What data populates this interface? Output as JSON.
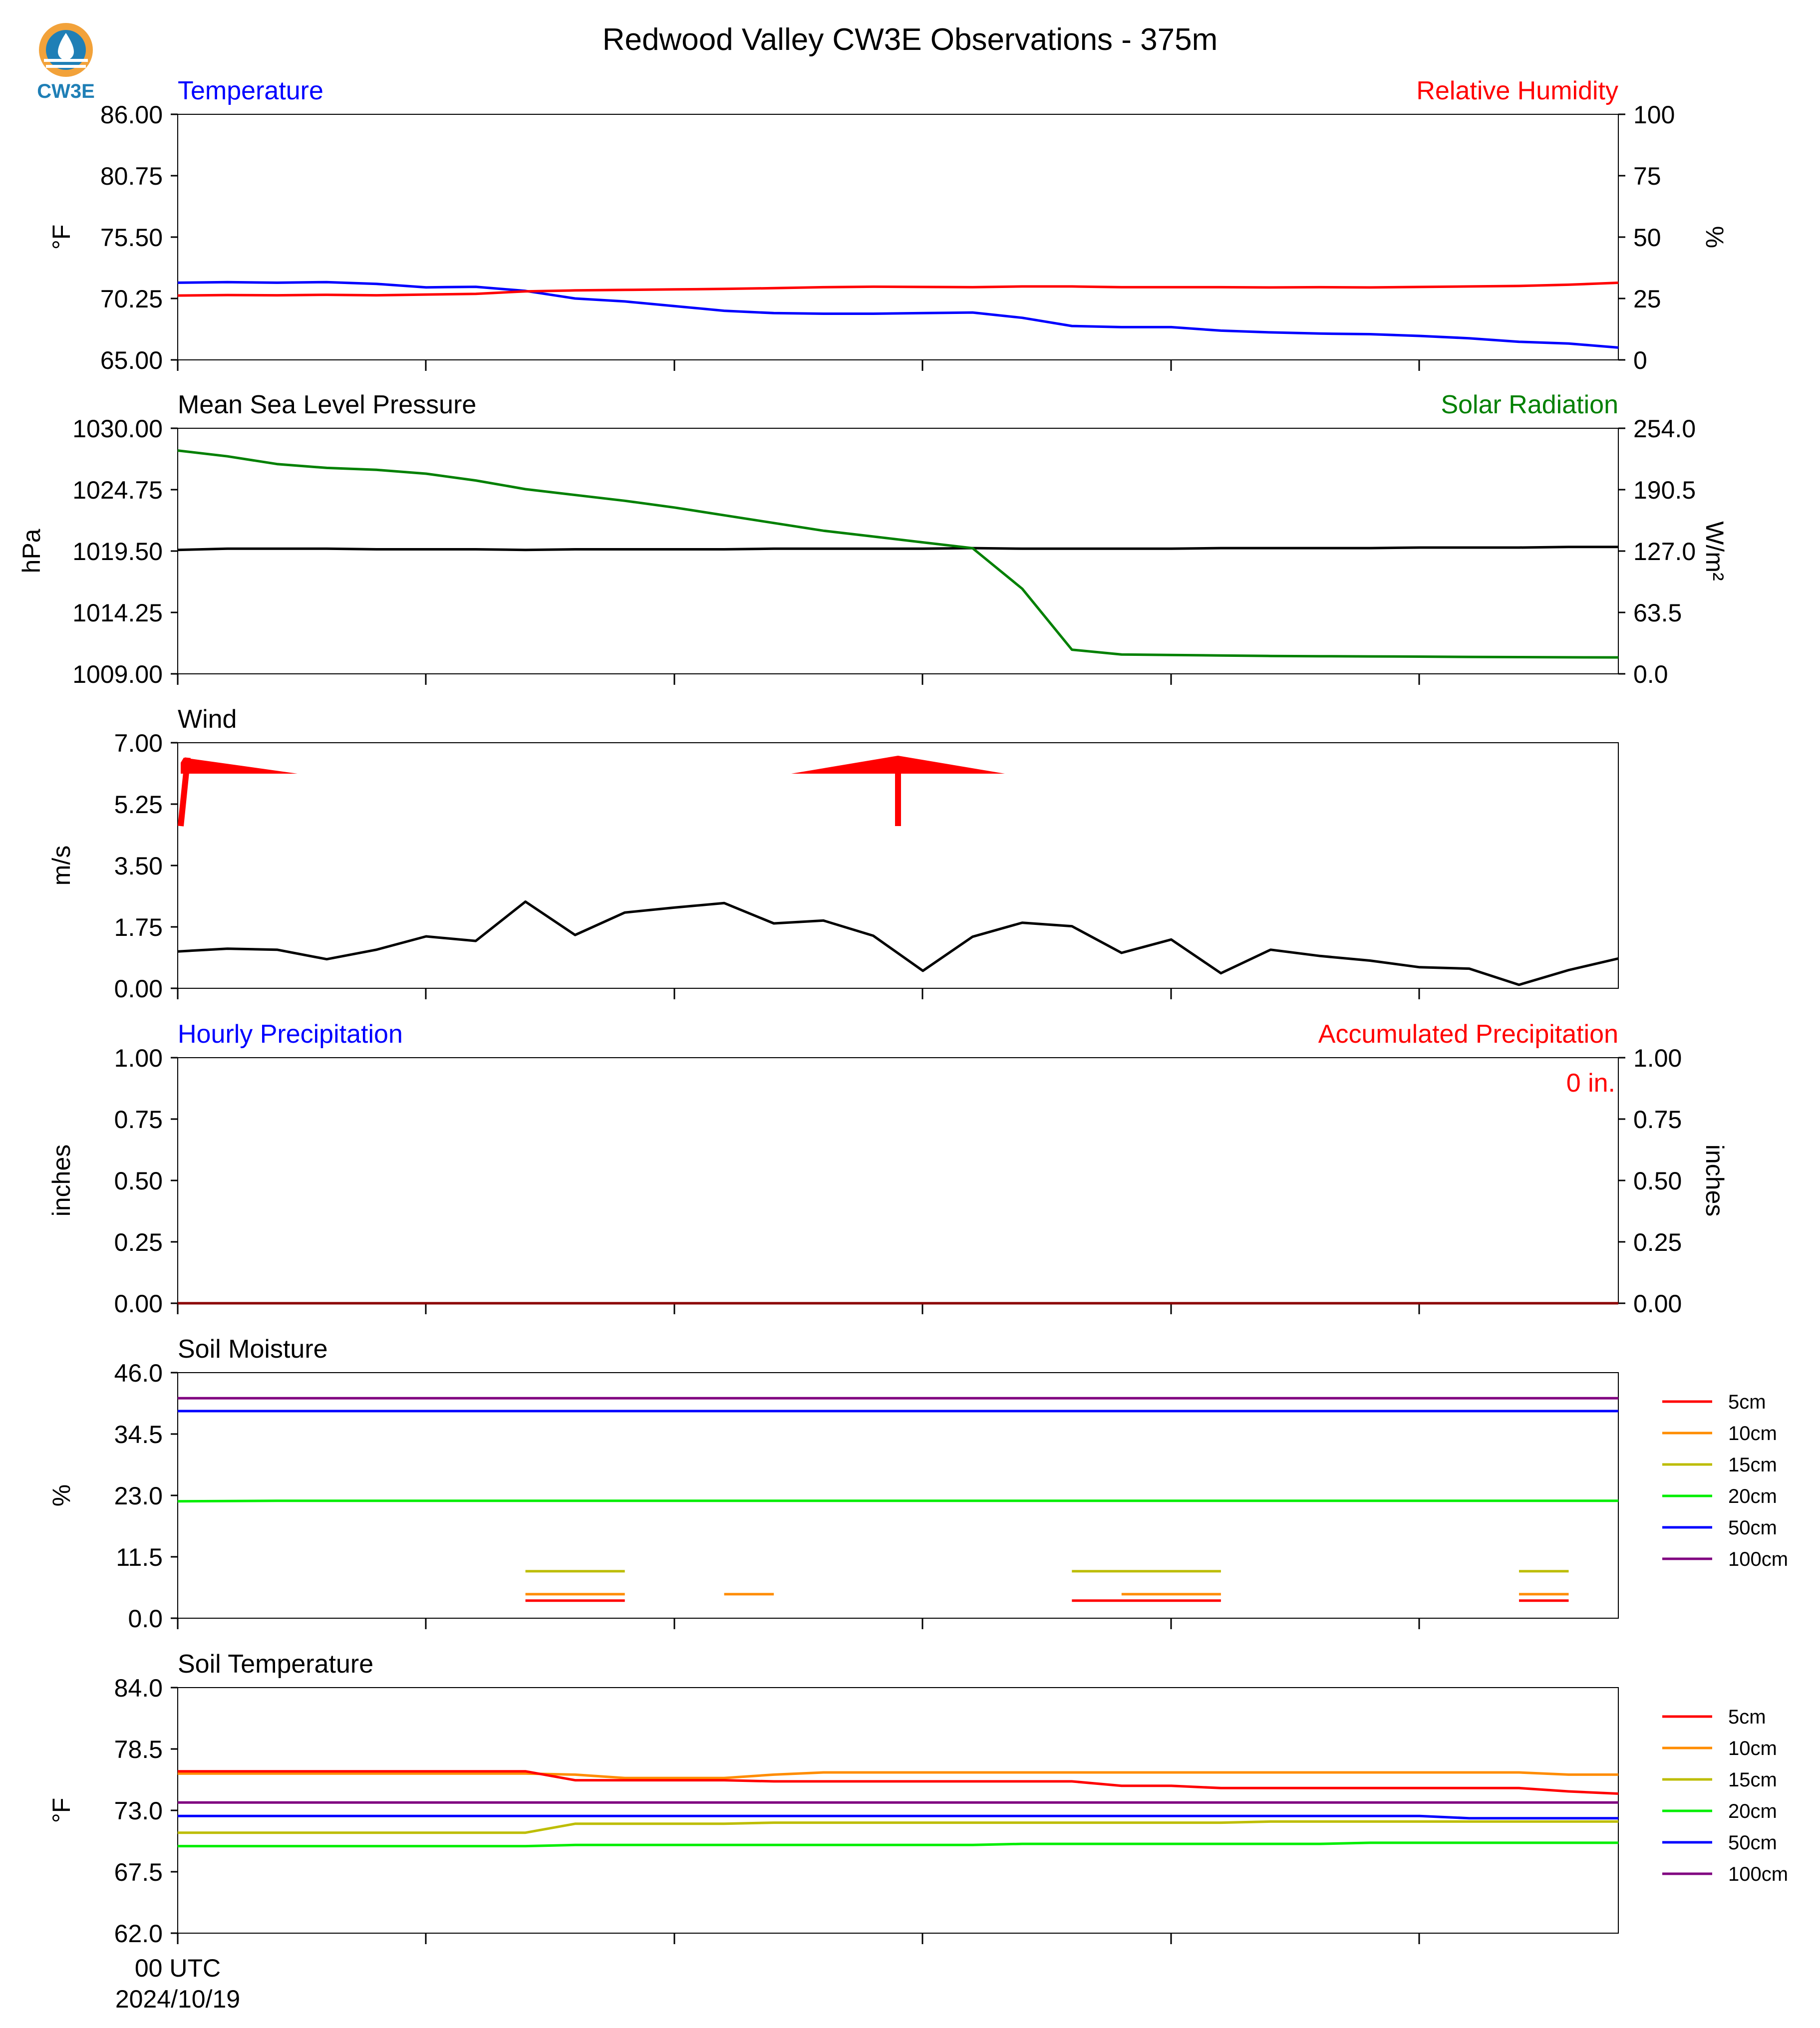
{
  "figure": {
    "title": "Redwood Valley CW3E Observations - 375m",
    "logo_text": "CW3E",
    "x_first_tick_line1": "00 UTC",
    "x_first_tick_line2": "2024/10/19"
  },
  "colors": {
    "logo_orange": "#f2a23a",
    "logo_blue": "#1f7fb6",
    "temperature": "#0000ff",
    "humidity": "#ff0000",
    "pressure": "#000000",
    "solar": "#008000",
    "wind": "#000000",
    "barb": "#ff0000",
    "precip_hourly": "#0000ff",
    "precip_accum": "#ff0000"
  },
  "chart_data": [
    {
      "id": "temp_rh",
      "type": "line",
      "left_title": "Temperature",
      "right_title": "Relative Humidity",
      "ylabel": "°F",
      "ylabel_right": "%",
      "ylim": [
        65.0,
        86.0
      ],
      "ylim_right": [
        0,
        100
      ],
      "yticks": [
        "86.00",
        "80.75",
        "75.50",
        "70.25",
        "65.00"
      ],
      "yticks_right": [
        "100",
        "75",
        "50",
        "25",
        "0"
      ],
      "x_hours": [
        0,
        1,
        2,
        3,
        4,
        5,
        6,
        7,
        8,
        9,
        10,
        11,
        12,
        13,
        14,
        15,
        16,
        17,
        18,
        19,
        20,
        21,
        22,
        23,
        24,
        25,
        26,
        27,
        28,
        29
      ],
      "series": [
        {
          "axis": "left",
          "color": "#0000ff",
          "values": [
            71.6,
            71.65,
            71.6,
            71.65,
            71.5,
            71.2,
            71.25,
            70.9,
            70.25,
            70.0,
            69.6,
            69.2,
            69.0,
            68.95,
            68.95,
            69.0,
            69.05,
            68.6,
            67.9,
            67.8,
            67.8,
            67.5,
            67.35,
            67.25,
            67.2,
            67.05,
            66.85,
            66.55,
            66.4,
            66.05
          ]
        },
        {
          "axis": "right",
          "color": "#ff0000",
          "values": [
            26.2,
            26.4,
            26.3,
            26.5,
            26.3,
            26.6,
            26.9,
            27.9,
            28.3,
            28.5,
            28.7,
            28.9,
            29.2,
            29.6,
            29.8,
            29.7,
            29.6,
            29.9,
            29.9,
            29.6,
            29.6,
            29.6,
            29.5,
            29.6,
            29.5,
            29.7,
            29.9,
            30.1,
            30.6,
            31.4
          ]
        }
      ]
    },
    {
      "id": "mslp_solar",
      "type": "line",
      "left_title": "Mean Sea Level Pressure",
      "right_title": "Solar Radiation",
      "ylabel": "hPa",
      "ylabel_right": "W/m²",
      "ylim": [
        1009.0,
        1030.0
      ],
      "ylim_right": [
        0.0,
        254.0
      ],
      "yticks": [
        "1030.00",
        "1024.75",
        "1019.50",
        "1014.25",
        "1009.00"
      ],
      "yticks_right": [
        "254.0",
        "190.5",
        "127.0",
        "63.5",
        "0.0"
      ],
      "x_hours": [
        0,
        1,
        2,
        3,
        4,
        5,
        6,
        7,
        8,
        9,
        10,
        11,
        12,
        13,
        14,
        15,
        16,
        17,
        18,
        19,
        20,
        21,
        22,
        23,
        24,
        25,
        26,
        27,
        28,
        29
      ],
      "series": [
        {
          "axis": "left",
          "color": "#000000",
          "values": [
            1019.6,
            1019.7,
            1019.7,
            1019.7,
            1019.65,
            1019.65,
            1019.65,
            1019.6,
            1019.65,
            1019.65,
            1019.65,
            1019.65,
            1019.7,
            1019.7,
            1019.7,
            1019.7,
            1019.75,
            1019.7,
            1019.7,
            1019.7,
            1019.7,
            1019.75,
            1019.75,
            1019.75,
            1019.75,
            1019.8,
            1019.8,
            1019.8,
            1019.85,
            1019.85
          ]
        },
        {
          "axis": "right",
          "color": "#008000",
          "values": [
            231,
            225,
            217,
            213,
            211,
            207,
            200,
            191,
            185,
            179,
            172,
            164,
            156,
            148,
            142,
            136,
            130,
            88,
            25,
            20,
            19.5,
            19,
            18.5,
            18.2,
            18,
            17.8,
            17.5,
            17.3,
            17.1,
            17
          ]
        }
      ]
    },
    {
      "id": "wind",
      "type": "line",
      "left_title": "Wind",
      "ylabel": "m/s",
      "ylim": [
        0.0,
        7.0
      ],
      "yticks": [
        "7.00",
        "5.25",
        "3.50",
        "1.75",
        "0.00"
      ],
      "x_hours": [
        0,
        1,
        2,
        3,
        4,
        5,
        6,
        7,
        8,
        9,
        10,
        11,
        12,
        13,
        14,
        15,
        16,
        17,
        18,
        19,
        20,
        21,
        22,
        23,
        24,
        25,
        26,
        27,
        28,
        29
      ],
      "series": [
        {
          "axis": "left",
          "color": "#000000",
          "values": [
            1.05,
            1.13,
            1.1,
            0.83,
            1.1,
            1.48,
            1.35,
            2.47,
            1.52,
            2.16,
            2.3,
            2.43,
            1.85,
            1.93,
            1.5,
            0.5,
            1.47,
            1.87,
            1.77,
            1.01,
            1.39,
            0.43,
            1.1,
            0.92,
            0.79,
            0.6,
            0.56,
            0.1,
            0.52,
            0.85
          ]
        }
      ],
      "barbs": [
        {
          "hour": 0,
          "direction": "pennant-right"
        },
        {
          "hour": 14.5,
          "direction": "pennant-both"
        }
      ]
    },
    {
      "id": "precip",
      "type": "line",
      "left_title": "Hourly Precipitation",
      "right_title": "Accumulated Precipitation",
      "accum_label": "0 in.",
      "ylabel": "inches",
      "ylabel_right": "inches",
      "ylim": [
        0.0,
        1.0
      ],
      "ylim_right": [
        0.0,
        1.0
      ],
      "yticks": [
        "1.00",
        "0.75",
        "0.50",
        "0.25",
        "0.00"
      ],
      "yticks_right": [
        "1.00",
        "0.75",
        "0.50",
        "0.25",
        "0.00"
      ],
      "x_hours": [
        0,
        29
      ],
      "series": [
        {
          "axis": "left",
          "color": "#8b0000",
          "values": [
            0,
            0
          ]
        }
      ]
    },
    {
      "id": "soil_moisture",
      "type": "line",
      "left_title": "Soil Moisture",
      "ylabel": "%",
      "ylim": [
        0.0,
        46.0
      ],
      "yticks": [
        "46.0",
        "34.5",
        "23.0",
        "11.5",
        "0.0"
      ],
      "legend": [
        "5cm",
        "10cm",
        "15cm",
        "20cm",
        "50cm",
        "100cm"
      ],
      "legend_colors": [
        "#ff0000",
        "#ff8c00",
        "#bdbd00",
        "#00ee00",
        "#0000ff",
        "#800080"
      ],
      "series": [
        {
          "name": "100cm",
          "color": "#800080",
          "segments": [
            [
              [
                0,
                41.2
              ],
              [
                29,
                41.2
              ]
            ]
          ]
        },
        {
          "name": "50cm",
          "color": "#0000ff",
          "segments": [
            [
              [
                0,
                38.8
              ],
              [
                29,
                38.8
              ]
            ]
          ]
        },
        {
          "name": "20cm",
          "color": "#00ee00",
          "segments": [
            [
              [
                0,
                21.9
              ],
              [
                2,
                22.0
              ],
              [
                29,
                22.0
              ]
            ]
          ]
        },
        {
          "name": "15cm",
          "color": "#bdbd00",
          "segments": [
            [
              [
                7,
                8.8
              ],
              [
                9,
                8.8
              ]
            ],
            [
              [
                18,
                8.8
              ],
              [
                21,
                8.8
              ]
            ],
            [
              [
                27,
                8.8
              ],
              [
                28,
                8.8
              ]
            ]
          ]
        },
        {
          "name": "10cm",
          "color": "#ff8c00",
          "segments": [
            [
              [
                7,
                4.5
              ],
              [
                9,
                4.5
              ]
            ],
            [
              [
                11,
                4.5
              ],
              [
                12,
                4.5
              ]
            ],
            [
              [
                19,
                4.5
              ],
              [
                21,
                4.5
              ]
            ],
            [
              [
                27,
                4.5
              ],
              [
                28,
                4.5
              ]
            ]
          ]
        },
        {
          "name": "5cm",
          "color": "#ff0000",
          "segments": [
            [
              [
                7,
                3.3
              ],
              [
                9,
                3.3
              ]
            ],
            [
              [
                18,
                3.3
              ],
              [
                21,
                3.3
              ]
            ],
            [
              [
                27,
                3.3
              ],
              [
                28,
                3.3
              ]
            ]
          ]
        }
      ]
    },
    {
      "id": "soil_temperature",
      "type": "line",
      "left_title": "Soil Temperature",
      "ylabel": "°F",
      "ylim": [
        62.0,
        84.0
      ],
      "yticks": [
        "84.0",
        "78.5",
        "73.0",
        "67.5",
        "62.0"
      ],
      "legend": [
        "5cm",
        "10cm",
        "15cm",
        "20cm",
        "50cm",
        "100cm"
      ],
      "legend_colors": [
        "#ff0000",
        "#ff8c00",
        "#bdbd00",
        "#00ee00",
        "#0000ff",
        "#800080"
      ],
      "x_hours": [
        0,
        1,
        2,
        3,
        4,
        5,
        6,
        7,
        8,
        9,
        10,
        11,
        12,
        13,
        14,
        15,
        16,
        17,
        18,
        19,
        20,
        21,
        22,
        23,
        24,
        25,
        26,
        27,
        28,
        29
      ],
      "series": [
        {
          "name": "10cm",
          "color": "#ff8c00",
          "values": [
            76.3,
            76.3,
            76.3,
            76.3,
            76.3,
            76.3,
            76.3,
            76.3,
            76.2,
            75.9,
            75.9,
            75.9,
            76.2,
            76.4,
            76.4,
            76.4,
            76.4,
            76.4,
            76.4,
            76.4,
            76.4,
            76.4,
            76.4,
            76.4,
            76.4,
            76.4,
            76.4,
            76.4,
            76.2,
            76.2
          ]
        },
        {
          "name": "5cm",
          "color": "#ff0000",
          "values": [
            76.5,
            76.5,
            76.5,
            76.5,
            76.5,
            76.5,
            76.5,
            76.5,
            75.7,
            75.7,
            75.7,
            75.7,
            75.6,
            75.6,
            75.6,
            75.6,
            75.6,
            75.6,
            75.6,
            75.2,
            75.2,
            75.0,
            75.0,
            75.0,
            75.0,
            75.0,
            75.0,
            75.0,
            74.7,
            74.5
          ]
        },
        {
          "name": "100cm",
          "color": "#800080",
          "values": [
            73.7,
            73.7,
            73.7,
            73.7,
            73.7,
            73.7,
            73.7,
            73.7,
            73.7,
            73.7,
            73.7,
            73.7,
            73.7,
            73.7,
            73.7,
            73.7,
            73.7,
            73.7,
            73.7,
            73.7,
            73.7,
            73.7,
            73.7,
            73.7,
            73.7,
            73.7,
            73.7,
            73.7,
            73.7,
            73.7
          ]
        },
        {
          "name": "50cm",
          "color": "#0000ff",
          "values": [
            72.5,
            72.5,
            72.5,
            72.5,
            72.5,
            72.5,
            72.5,
            72.5,
            72.5,
            72.5,
            72.5,
            72.5,
            72.5,
            72.5,
            72.5,
            72.5,
            72.5,
            72.5,
            72.5,
            72.5,
            72.5,
            72.5,
            72.5,
            72.5,
            72.5,
            72.5,
            72.3,
            72.3,
            72.3,
            72.3
          ]
        },
        {
          "name": "15cm",
          "color": "#bdbd00",
          "values": [
            71.0,
            71.0,
            71.0,
            71.0,
            71.0,
            71.0,
            71.0,
            71.0,
            71.8,
            71.8,
            71.8,
            71.8,
            71.9,
            71.9,
            71.9,
            71.9,
            71.9,
            71.9,
            71.9,
            71.9,
            71.9,
            71.9,
            72.0,
            72.0,
            72.0,
            72.0,
            72.0,
            72.0,
            72.0,
            72.0
          ]
        },
        {
          "name": "20cm",
          "color": "#00ee00",
          "values": [
            69.8,
            69.8,
            69.8,
            69.8,
            69.8,
            69.8,
            69.8,
            69.8,
            69.9,
            69.9,
            69.9,
            69.9,
            69.9,
            69.9,
            69.9,
            69.9,
            69.9,
            70.0,
            70.0,
            70.0,
            70.0,
            70.0,
            70.0,
            70.0,
            70.1,
            70.1,
            70.1,
            70.1,
            70.1,
            70.1
          ]
        }
      ]
    }
  ]
}
